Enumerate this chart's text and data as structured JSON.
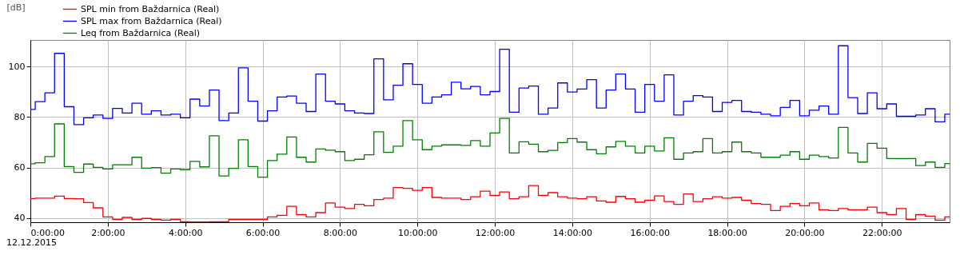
{
  "chart_data": {
    "type": "step",
    "ylabel": "[dB]",
    "x": [
      0,
      0.25,
      0.5,
      0.75,
      1,
      1.25,
      1.5,
      1.75,
      2,
      2.25,
      2.5,
      2.75,
      3,
      3.25,
      3.5,
      3.75,
      4,
      4.25,
      4.5,
      4.75,
      5,
      5.25,
      5.5,
      5.75,
      6,
      6.25,
      6.5,
      6.75,
      7,
      7.25,
      7.5,
      7.75,
      8,
      8.25,
      8.5,
      8.75,
      9,
      9.25,
      9.5,
      9.75,
      10,
      10.25,
      10.5,
      10.75,
      11,
      11.25,
      11.5,
      11.75,
      12,
      12.25,
      12.5,
      12.75,
      13,
      13.25,
      13.5,
      13.75,
      14,
      14.25,
      14.5,
      14.75,
      15,
      15.25,
      15.5,
      15.75,
      16,
      16.25,
      16.5,
      16.75,
      17,
      17.25,
      17.5,
      17.75,
      18,
      18.25,
      18.5,
      18.75,
      19,
      19.25,
      19.5,
      19.75,
      20,
      20.25,
      20.5,
      20.75,
      21,
      21.25,
      21.5,
      21.75,
      22,
      22.25,
      22.5,
      22.75,
      23,
      23.25,
      23.5,
      23.75
    ],
    "series": [
      {
        "name": "SPL min from Baždarnica (Real)",
        "color": "#ff0000",
        "values": [
          47.8,
          47.9,
          47.9,
          48.7,
          47.8,
          47.7,
          46.2,
          44.1,
          40.5,
          39.5,
          40.3,
          39.5,
          39.9,
          39.5,
          39.2,
          39.5,
          38.6,
          38.5,
          38.5,
          38.6,
          38.6,
          39.5,
          39.5,
          39.5,
          39.5,
          40.5,
          41.1,
          44.7,
          41.4,
          40.5,
          42.2,
          46.0,
          44.4,
          43.8,
          45.5,
          44.9,
          47.4,
          47.9,
          52.1,
          51.8,
          51.0,
          52.1,
          48.2,
          47.9,
          47.9,
          47.4,
          48.5,
          50.7,
          49.0,
          50.4,
          47.7,
          48.5,
          52.9,
          49.0,
          50.1,
          48.5,
          47.9,
          47.7,
          48.5,
          46.8,
          46.3,
          48.6,
          47.7,
          46.3,
          47.1,
          48.8,
          46.6,
          45.5,
          49.6,
          46.6,
          47.7,
          48.5,
          47.9,
          48.2,
          47.1,
          45.8,
          45.5,
          43.0,
          44.7,
          45.8,
          44.9,
          46.0,
          43.3,
          43.0,
          43.8,
          43.3,
          43.3,
          44.4,
          42.2,
          41.4,
          43.8,
          39.5,
          41.4,
          40.8,
          39.2,
          40.5
        ]
      },
      {
        "name": "SPL max from Baždarnica (Real)",
        "color": "#0000ff",
        "values": [
          83.0,
          86.1,
          89.6,
          105.2,
          84.1,
          77.0,
          79.7,
          80.8,
          79.5,
          83.4,
          81.6,
          85.5,
          81.1,
          82.5,
          80.8,
          81.1,
          79.7,
          87.1,
          84.4,
          90.7,
          78.6,
          81.6,
          99.5,
          86.3,
          78.4,
          82.5,
          87.9,
          88.3,
          85.5,
          82.2,
          97.0,
          86.3,
          85.2,
          82.5,
          81.6,
          81.4,
          103.0,
          86.8,
          92.6,
          101.1,
          92.9,
          85.5,
          87.9,
          88.8,
          93.8,
          91.2,
          92.1,
          88.8,
          90.1,
          106.8,
          81.9,
          91.5,
          92.3,
          81.1,
          83.6,
          93.5,
          89.9,
          91.1,
          94.8,
          83.6,
          90.7,
          97.0,
          91.1,
          81.9,
          92.9,
          86.3,
          96.7,
          80.8,
          86.3,
          88.5,
          87.9,
          82.2,
          85.8,
          86.6,
          82.2,
          81.9,
          81.1,
          80.5,
          83.8,
          86.6,
          80.5,
          82.7,
          84.4,
          81.1,
          108.2,
          87.7,
          81.4,
          89.6,
          83.3,
          85.2,
          80.3,
          80.3,
          80.8,
          83.3,
          78.1,
          81.1
        ]
      },
      {
        "name": "Leq from Baždarnica (Real)",
        "color": "#008000",
        "values": [
          61.5,
          61.9,
          64.4,
          77.3,
          60.4,
          58.1,
          61.4,
          60.1,
          59.5,
          61.1,
          61.1,
          64.1,
          59.8,
          60.0,
          57.8,
          59.5,
          59.2,
          62.5,
          60.3,
          72.6,
          56.7,
          59.7,
          71.0,
          60.4,
          56.2,
          62.8,
          65.3,
          72.1,
          64.1,
          62.2,
          67.4,
          66.9,
          66.3,
          62.8,
          63.3,
          65.1,
          74.2,
          66.0,
          68.5,
          78.6,
          71.0,
          67.1,
          68.5,
          69.0,
          69.0,
          68.8,
          70.7,
          68.5,
          73.7,
          79.5,
          65.8,
          70.2,
          69.3,
          66.3,
          66.8,
          69.9,
          71.5,
          70.1,
          67.1,
          65.5,
          68.2,
          70.4,
          68.5,
          65.8,
          68.5,
          66.6,
          71.8,
          63.3,
          65.8,
          66.3,
          71.5,
          65.8,
          66.3,
          70.1,
          66.3,
          65.8,
          64.1,
          64.1,
          64.9,
          66.3,
          63.3,
          64.9,
          64.4,
          63.8,
          75.9,
          65.8,
          62.2,
          69.6,
          67.7,
          63.6,
          63.6,
          63.6,
          60.8,
          62.2,
          60.1,
          61.6
        ]
      }
    ],
    "xlim": [
      0,
      23.75
    ],
    "ylim": [
      38.4,
      110.5
    ],
    "xticks": [
      {
        "value": 0,
        "label": "0:00:00"
      },
      {
        "value": 2,
        "label": "2:00:00"
      },
      {
        "value": 4,
        "label": "4:00:00"
      },
      {
        "value": 6,
        "label": "6:00:00"
      },
      {
        "value": 8,
        "label": "8:00:00"
      },
      {
        "value": 10,
        "label": "10:00:00"
      },
      {
        "value": 12,
        "label": "12:00:00"
      },
      {
        "value": 14,
        "label": "14:00:00"
      },
      {
        "value": 16,
        "label": "16:00:00"
      },
      {
        "value": 18,
        "label": "18:00:00"
      },
      {
        "value": 20,
        "label": "20:00:00"
      },
      {
        "value": 22,
        "label": "22:00:00"
      }
    ],
    "yticks": [
      40,
      60,
      80,
      100
    ],
    "grid": true,
    "legend": "top left",
    "marker": "none",
    "line_style": "solid",
    "annotations": [
      "12.12.2015"
    ]
  }
}
